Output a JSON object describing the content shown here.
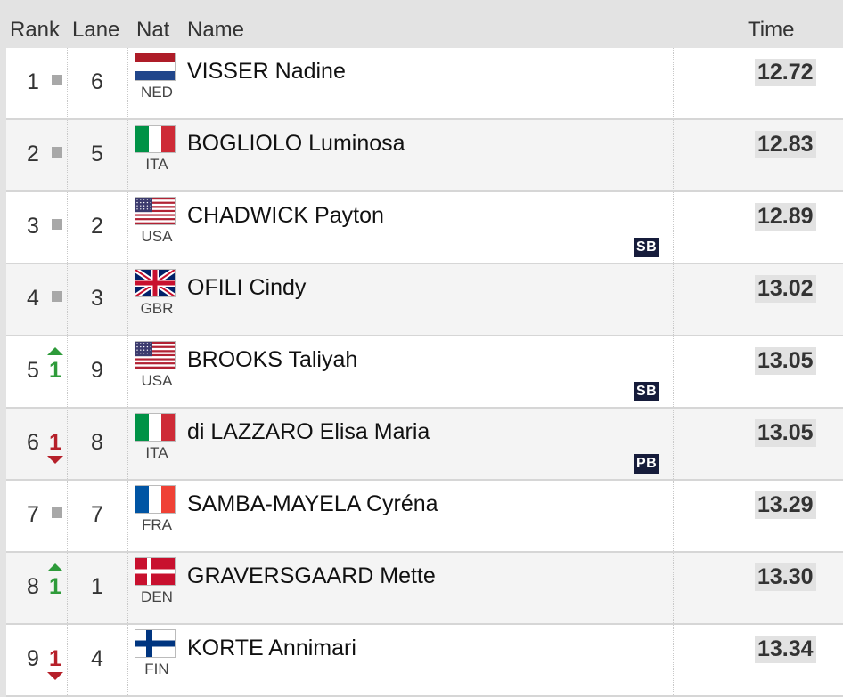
{
  "header": {
    "rank": "Rank",
    "lane": "Lane",
    "nat": "Nat",
    "name": "Name",
    "time": "Time"
  },
  "colors": {
    "up": "#2e9b3a",
    "down": "#b6202a",
    "badge": "#161c3b"
  },
  "rows": [
    {
      "rank": "1",
      "change": "none",
      "change_value": "",
      "lane": "6",
      "flag": "NED-flag-icon",
      "nat": "NED",
      "name": "VISSER Nadine",
      "badge": "",
      "time": "12.72"
    },
    {
      "rank": "2",
      "change": "none",
      "change_value": "",
      "lane": "5",
      "flag": "ITA-flag-icon",
      "nat": "ITA",
      "name": "BOGLIOLO Luminosa",
      "badge": "",
      "time": "12.83"
    },
    {
      "rank": "3",
      "change": "none",
      "change_value": "",
      "lane": "2",
      "flag": "USA-flag-icon",
      "nat": "USA",
      "name": "CHADWICK Payton",
      "badge": "SB",
      "time": "12.89"
    },
    {
      "rank": "4",
      "change": "none",
      "change_value": "",
      "lane": "3",
      "flag": "GBR-flag-icon",
      "nat": "GBR",
      "name": "OFILI Cindy",
      "badge": "",
      "time": "13.02"
    },
    {
      "rank": "5",
      "change": "up",
      "change_value": "1",
      "lane": "9",
      "flag": "USA-flag-icon",
      "nat": "USA",
      "name": "BROOKS Taliyah",
      "badge": "SB",
      "time": "13.05"
    },
    {
      "rank": "6",
      "change": "down",
      "change_value": "1",
      "lane": "8",
      "flag": "ITA-flag-icon",
      "nat": "ITA",
      "name": "di LAZZARO Elisa Maria",
      "badge": "PB",
      "time": "13.05"
    },
    {
      "rank": "7",
      "change": "none",
      "change_value": "",
      "lane": "7",
      "flag": "FRA-flag-icon",
      "nat": "FRA",
      "name": "SAMBA-MAYELA Cyréna",
      "badge": "",
      "time": "13.29"
    },
    {
      "rank": "8",
      "change": "up",
      "change_value": "1",
      "lane": "1",
      "flag": "DEN-flag-icon",
      "nat": "DEN",
      "name": "GRAVERSGAARD Mette",
      "badge": "",
      "time": "13.30"
    },
    {
      "rank": "9",
      "change": "down",
      "change_value": "1",
      "lane": "4",
      "flag": "FIN-flag-icon",
      "nat": "FIN",
      "name": "KORTE Annimari",
      "badge": "",
      "time": "13.34"
    }
  ]
}
